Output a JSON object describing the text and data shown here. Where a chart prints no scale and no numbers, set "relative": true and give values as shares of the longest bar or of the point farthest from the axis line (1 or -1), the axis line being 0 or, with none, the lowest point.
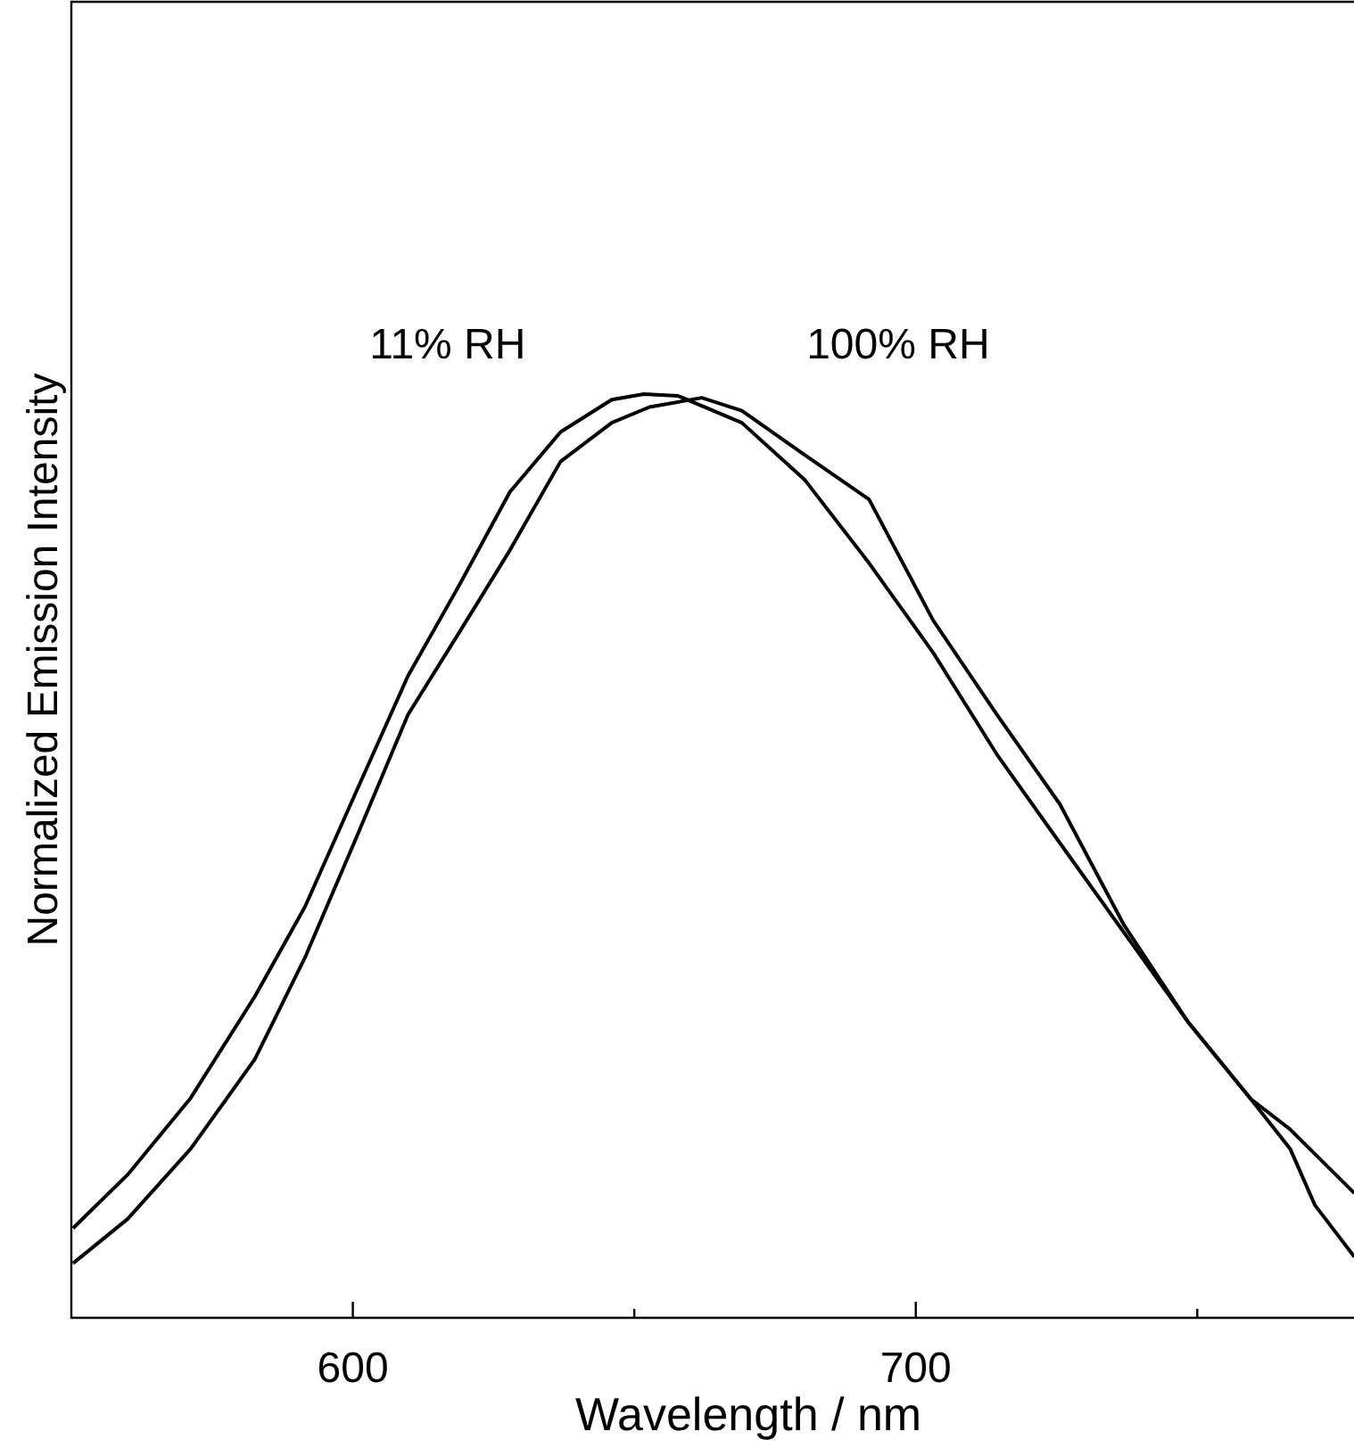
{
  "chart_data": {
    "type": "line",
    "relative": true,
    "xlabel": "Wavelength / nm",
    "ylabel": "Normalized Emission Intensity",
    "xlim": [
      550,
      778
    ],
    "xticks": [
      600,
      {
        "value": 650,
        "label": null
      },
      700,
      {
        "value": 750,
        "label": null
      }
    ],
    "marker": "none",
    "line_style": "solid",
    "grid": false,
    "series": [
      {
        "name": "11% RH",
        "color": "#000000",
        "x": [
          550.3,
          560,
          571.2,
          582.6,
          591.5,
          600.7,
          609.8,
          618.8,
          627.9,
          636.9,
          646,
          651.7,
          657.8,
          669.1,
          680.3,
          691.7,
          703.1,
          714.4,
          725.6,
          737,
          748.4,
          759.5,
          766.5,
          770.9,
          777.9
        ],
        "values": [
          0.097,
          0.155,
          0.238,
          0.348,
          0.445,
          0.571,
          0.695,
          0.792,
          0.894,
          0.959,
          0.994,
          1,
          0.998,
          0.969,
          0.907,
          0.817,
          0.72,
          0.61,
          0.514,
          0.417,
          0.32,
          0.237,
          0.183,
          0.122,
          0.066
        ]
      },
      {
        "name": "100% RH",
        "color": "#000000",
        "x": [
          550.3,
          560,
          571.2,
          582.6,
          591.5,
          600.7,
          609.8,
          618.8,
          627.9,
          636.9,
          646,
          652.7,
          662,
          669.1,
          680.3,
          691.7,
          703.1,
          714.4,
          725.6,
          737,
          748.4,
          759.5,
          766.5,
          777.9
        ],
        "values": [
          0.059,
          0.107,
          0.183,
          0.28,
          0.39,
          0.521,
          0.653,
          0.741,
          0.831,
          0.927,
          0.969,
          0.986,
          0.996,
          0.982,
          0.934,
          0.886,
          0.755,
          0.653,
          0.556,
          0.425,
          0.32,
          0.237,
          0.204,
          0.135
        ]
      }
    ]
  }
}
